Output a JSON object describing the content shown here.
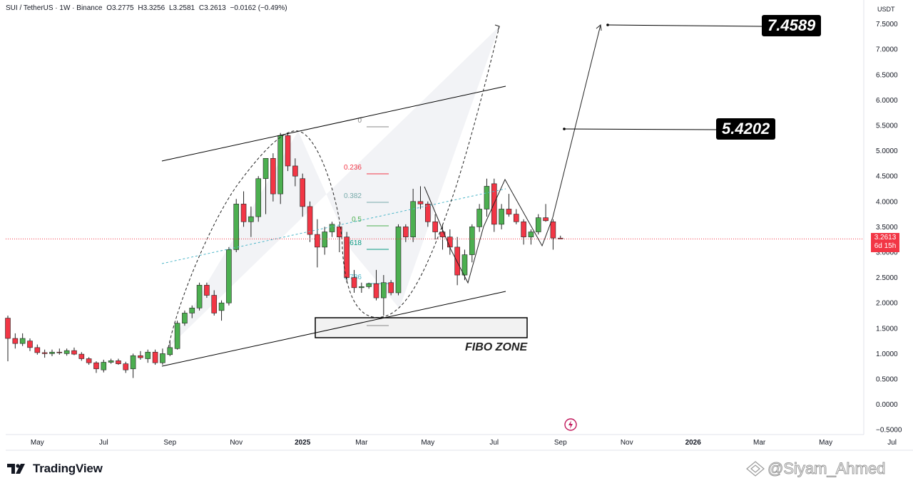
{
  "header": {
    "symbol": "SUI / TetherUS · 1W · Binance",
    "open": "O3.2775",
    "high": "H3.3256",
    "low": "L3.2581",
    "close": "C3.2613",
    "change": "−0.0162 (−0.49%)"
  },
  "axis": {
    "currency": "USDT",
    "current_price": "3.2613",
    "countdown": "6d 15h"
  },
  "branding": {
    "logo_text": "TradingView",
    "watermark": "@Siyam_Ahmed"
  },
  "annotations": {
    "target_high": "7.4589",
    "target_mid": "5.4202",
    "fibo_zone": "FIBO ZONE"
  },
  "colors": {
    "up": "#4caf50",
    "down": "#f23645",
    "axis_line": "#e0e3eb",
    "price_line": "#f23645"
  },
  "chart_data": {
    "type": "candlestick",
    "interval": "1W",
    "ylim": [
      -0.5,
      7.5
    ],
    "y_ticks": [
      -0.5,
      0,
      0.5,
      1,
      1.5,
      2,
      2.5,
      3,
      3.5,
      4,
      4.5,
      5,
      5.5,
      6,
      6.5,
      7,
      7.5
    ],
    "y_tick_labels": [
      "−0.5000",
      "0.0000",
      "0.5000",
      "1.0000",
      "1.5000",
      "2.0000",
      "2.5000",
      "3.0000",
      "3.5000",
      "4.0000",
      "4.5000",
      "5.0000",
      "5.5000",
      "6.0000",
      "6.5000",
      "7.0000",
      "7.5000"
    ],
    "x_ticks": [
      {
        "label": "May",
        "bold": false,
        "week": 4
      },
      {
        "label": "Jul",
        "bold": false,
        "week": 13
      },
      {
        "label": "Sep",
        "bold": false,
        "week": 22
      },
      {
        "label": "Nov",
        "bold": false,
        "week": 31
      },
      {
        "label": "2025",
        "bold": true,
        "week": 40
      },
      {
        "label": "Mar",
        "bold": false,
        "week": 48
      },
      {
        "label": "May",
        "bold": false,
        "week": 57
      },
      {
        "label": "Jul",
        "bold": false,
        "week": 66
      },
      {
        "label": "Sep",
        "bold": false,
        "week": 75
      },
      {
        "label": "Nov",
        "bold": false,
        "week": 84
      },
      {
        "label": "2026",
        "bold": true,
        "week": 93
      },
      {
        "label": "Mar",
        "bold": false,
        "week": 102
      },
      {
        "label": "May",
        "bold": false,
        "week": 111
      },
      {
        "label": "Jul",
        "bold": false,
        "week": 120
      }
    ],
    "candles": [
      [
        1.7,
        1.75,
        0.85,
        1.3
      ],
      [
        1.3,
        1.4,
        1.1,
        1.2
      ],
      [
        1.2,
        1.4,
        1.15,
        1.3
      ],
      [
        1.25,
        1.3,
        1.05,
        1.12
      ],
      [
        1.12,
        1.18,
        0.98,
        1.02
      ],
      [
        1.02,
        1.08,
        0.92,
        1.0
      ],
      [
        1.0,
        1.08,
        0.95,
        1.03
      ],
      [
        1.03,
        1.1,
        0.98,
        1.02
      ],
      [
        1.0,
        1.1,
        0.96,
        1.06
      ],
      [
        1.06,
        1.12,
        0.97,
        0.99
      ],
      [
        0.99,
        1.03,
        0.86,
        0.9
      ],
      [
        0.9,
        0.93,
        0.78,
        0.82
      ],
      [
        0.82,
        0.85,
        0.62,
        0.7
      ],
      [
        0.68,
        0.88,
        0.63,
        0.83
      ],
      [
        0.83,
        0.9,
        0.8,
        0.86
      ],
      [
        0.86,
        0.9,
        0.78,
        0.8
      ],
      [
        0.8,
        0.84,
        0.62,
        0.68
      ],
      [
        0.7,
        1.0,
        0.52,
        0.96
      ],
      [
        0.96,
        1.05,
        0.88,
        0.92
      ],
      [
        0.9,
        1.08,
        0.82,
        1.03
      ],
      [
        1.03,
        1.08,
        0.78,
        0.82
      ],
      [
        0.82,
        1.1,
        0.78,
        1.0
      ],
      [
        0.98,
        1.25,
        0.95,
        1.12
      ],
      [
        1.1,
        1.65,
        1.08,
        1.6
      ],
      [
        1.6,
        1.85,
        1.55,
        1.8
      ],
      [
        1.8,
        1.95,
        1.7,
        1.9
      ],
      [
        1.9,
        2.4,
        1.85,
        2.35
      ],
      [
        2.35,
        2.4,
        2.1,
        2.15
      ],
      [
        2.15,
        2.25,
        1.75,
        1.8
      ],
      [
        1.85,
        2.05,
        1.65,
        2.0
      ],
      [
        2.0,
        3.1,
        1.95,
        3.05
      ],
      [
        3.05,
        4.05,
        3.0,
        3.95
      ],
      [
        3.95,
        4.2,
        3.5,
        3.6
      ],
      [
        3.6,
        3.9,
        3.3,
        3.7
      ],
      [
        3.7,
        4.5,
        3.6,
        4.45
      ],
      [
        4.45,
        4.8,
        3.75,
        4.85
      ],
      [
        4.85,
        4.95,
        4.0,
        4.15
      ],
      [
        4.15,
        5.35,
        3.95,
        5.3
      ],
      [
        5.3,
        5.36,
        4.6,
        4.7
      ],
      [
        4.7,
        4.85,
        4.3,
        4.5
      ],
      [
        4.45,
        4.55,
        3.7,
        3.9
      ],
      [
        3.9,
        4.0,
        3.2,
        3.35
      ],
      [
        3.35,
        3.65,
        2.7,
        3.1
      ],
      [
        3.1,
        3.5,
        2.95,
        3.4
      ],
      [
        3.4,
        3.6,
        3.3,
        3.55
      ],
      [
        3.5,
        3.55,
        3.0,
        3.3
      ],
      [
        3.3,
        3.4,
        2.4,
        2.5
      ],
      [
        2.5,
        2.65,
        2.2,
        2.3
      ],
      [
        2.3,
        2.4,
        2.2,
        2.32
      ],
      [
        2.32,
        2.4,
        2.28,
        2.38
      ],
      [
        2.38,
        2.65,
        2.05,
        2.1
      ],
      [
        2.1,
        2.55,
        1.75,
        2.4
      ],
      [
        2.4,
        2.45,
        2.15,
        2.2
      ],
      [
        2.2,
        3.55,
        2.15,
        3.5
      ],
      [
        3.5,
        3.55,
        3.2,
        3.3
      ],
      [
        3.3,
        4.25,
        3.2,
        4.0
      ],
      [
        4.0,
        4.3,
        3.85,
        3.95
      ],
      [
        3.95,
        4.0,
        3.5,
        3.6
      ],
      [
        3.6,
        3.75,
        3.25,
        3.4
      ],
      [
        3.4,
        3.55,
        3.05,
        3.3
      ],
      [
        3.3,
        3.45,
        2.95,
        3.1
      ],
      [
        3.1,
        3.3,
        2.35,
        2.55
      ],
      [
        2.55,
        3.05,
        2.45,
        2.95
      ],
      [
        2.95,
        3.55,
        2.8,
        3.5
      ],
      [
        3.5,
        3.95,
        3.4,
        3.85
      ],
      [
        3.85,
        4.45,
        3.7,
        4.3
      ],
      [
        4.35,
        4.45,
        3.4,
        3.55
      ],
      [
        3.55,
        3.95,
        3.45,
        3.85
      ],
      [
        3.85,
        4.15,
        3.7,
        3.75
      ],
      [
        3.75,
        3.85,
        3.55,
        3.6
      ],
      [
        3.6,
        3.65,
        3.15,
        3.3
      ],
      [
        3.3,
        3.45,
        3.15,
        3.4
      ],
      [
        3.4,
        3.75,
        3.35,
        3.68
      ],
      [
        3.68,
        3.95,
        3.6,
        3.62
      ],
      [
        3.6,
        3.65,
        3.05,
        3.28
      ],
      [
        3.2775,
        3.3256,
        3.2581,
        3.2613
      ]
    ]
  }
}
